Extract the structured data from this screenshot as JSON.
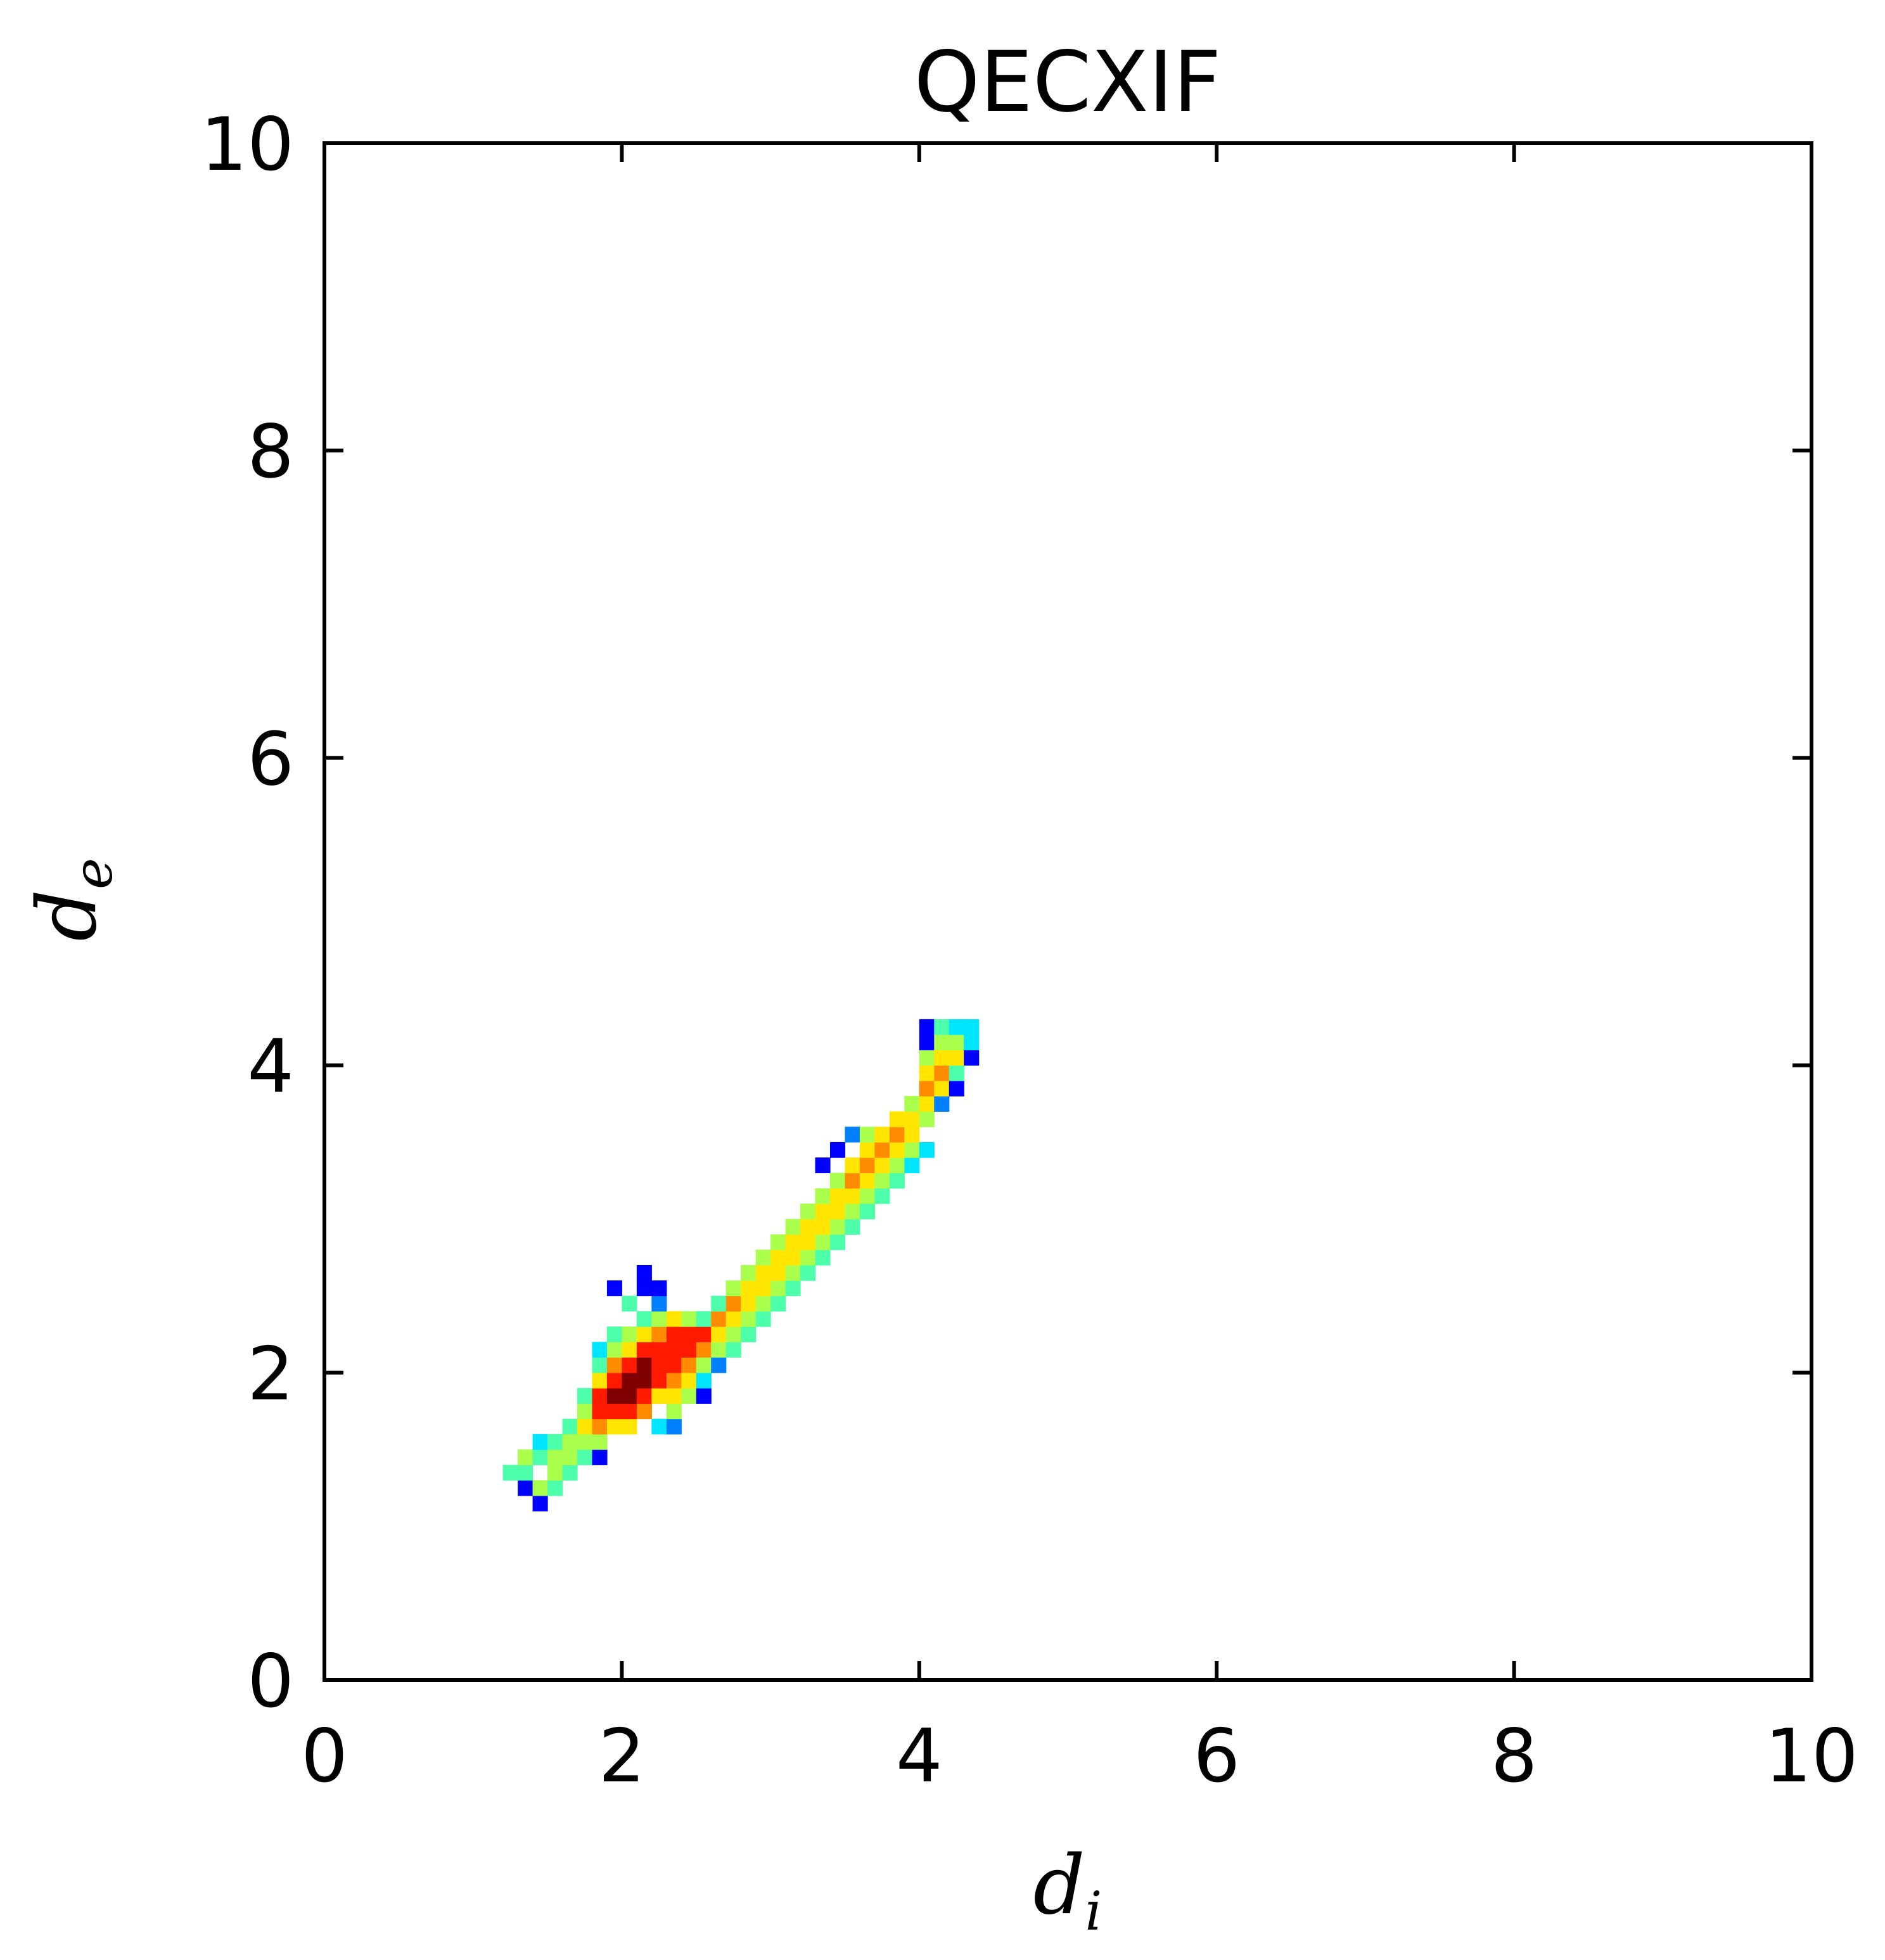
{
  "chart_data": {
    "type": "heatmap",
    "title": "QECXIF",
    "xlabel": {
      "base": "d",
      "sub": "i"
    },
    "ylabel": {
      "base": "d",
      "sub": "e"
    },
    "xlim": [
      0,
      10
    ],
    "ylim": [
      0,
      10
    ],
    "xticks": [
      "0",
      "2",
      "4",
      "6",
      "8",
      "10"
    ],
    "yticks": [
      "0",
      "2",
      "4",
      "6",
      "8",
      "10"
    ],
    "bin_size": 0.1,
    "colormap": "jet",
    "colors": [
      "#00007f",
      "#0000ff",
      "#0080ff",
      "#00e5ff",
      "#4dffaa",
      "#aaff4d",
      "#ffe500",
      "#ff8c00",
      "#ff1a00",
      "#7f0000"
    ],
    "grid": false,
    "legend": "none",
    "cells": [
      [
        1.2,
        1.3,
        4
      ],
      [
        1.3,
        1.2,
        1
      ],
      [
        1.3,
        1.3,
        4
      ],
      [
        1.3,
        1.4,
        5
      ],
      [
        1.4,
        1.1,
        1
      ],
      [
        1.4,
        1.2,
        5
      ],
      [
        1.4,
        1.4,
        4
      ],
      [
        1.4,
        1.5,
        3
      ],
      [
        1.5,
        1.2,
        4
      ],
      [
        1.5,
        1.3,
        5
      ],
      [
        1.5,
        1.4,
        5
      ],
      [
        1.5,
        1.5,
        4
      ],
      [
        1.6,
        1.3,
        4
      ],
      [
        1.6,
        1.4,
        5
      ],
      [
        1.6,
        1.5,
        5
      ],
      [
        1.6,
        1.6,
        4
      ],
      [
        1.7,
        1.4,
        4
      ],
      [
        1.7,
        1.5,
        5
      ],
      [
        1.7,
        1.6,
        6
      ],
      [
        1.7,
        1.7,
        5
      ],
      [
        1.7,
        1.8,
        4
      ],
      [
        1.8,
        1.4,
        1
      ],
      [
        1.8,
        1.5,
        5
      ],
      [
        1.8,
        1.6,
        7
      ],
      [
        1.8,
        1.7,
        8
      ],
      [
        1.8,
        1.8,
        8
      ],
      [
        1.8,
        1.9,
        6
      ],
      [
        1.8,
        2.0,
        4
      ],
      [
        1.8,
        2.1,
        3
      ],
      [
        1.9,
        1.6,
        6
      ],
      [
        1.9,
        1.7,
        8
      ],
      [
        1.9,
        1.8,
        9
      ],
      [
        1.9,
        1.9,
        8
      ],
      [
        1.9,
        2.0,
        7
      ],
      [
        1.9,
        2.1,
        5
      ],
      [
        1.9,
        2.2,
        4
      ],
      [
        1.9,
        2.5,
        1
      ],
      [
        2.0,
        1.6,
        6
      ],
      [
        2.0,
        1.7,
        8
      ],
      [
        2.0,
        1.8,
        9
      ],
      [
        2.0,
        1.9,
        9
      ],
      [
        2.0,
        2.0,
        8
      ],
      [
        2.0,
        2.1,
        6
      ],
      [
        2.0,
        2.2,
        5
      ],
      [
        2.0,
        2.4,
        4
      ],
      [
        2.1,
        1.7,
        7
      ],
      [
        2.1,
        1.8,
        8
      ],
      [
        2.1,
        1.9,
        9
      ],
      [
        2.1,
        2.0,
        9
      ],
      [
        2.1,
        2.1,
        8
      ],
      [
        2.1,
        2.2,
        6
      ],
      [
        2.1,
        2.3,
        4
      ],
      [
        2.1,
        2.5,
        1
      ],
      [
        2.1,
        2.6,
        1
      ],
      [
        2.2,
        1.6,
        3
      ],
      [
        2.2,
        1.8,
        6
      ],
      [
        2.2,
        1.9,
        8
      ],
      [
        2.2,
        2.0,
        8
      ],
      [
        2.2,
        2.1,
        8
      ],
      [
        2.2,
        2.2,
        7
      ],
      [
        2.2,
        2.3,
        5
      ],
      [
        2.2,
        2.4,
        2
      ],
      [
        2.2,
        2.5,
        1
      ],
      [
        2.3,
        1.6,
        2
      ],
      [
        2.3,
        1.7,
        5
      ],
      [
        2.3,
        1.8,
        6
      ],
      [
        2.3,
        1.9,
        7
      ],
      [
        2.3,
        2.0,
        8
      ],
      [
        2.3,
        2.1,
        8
      ],
      [
        2.3,
        2.2,
        8
      ],
      [
        2.3,
        2.3,
        6
      ],
      [
        2.4,
        1.8,
        5
      ],
      [
        2.4,
        1.9,
        6
      ],
      [
        2.4,
        2.0,
        7
      ],
      [
        2.4,
        2.1,
        8
      ],
      [
        2.4,
        2.2,
        8
      ],
      [
        2.4,
        2.3,
        5
      ],
      [
        2.5,
        1.8,
        1
      ],
      [
        2.5,
        1.9,
        3
      ],
      [
        2.5,
        2.0,
        5
      ],
      [
        2.5,
        2.1,
        7
      ],
      [
        2.5,
        2.2,
        8
      ],
      [
        2.5,
        2.3,
        4
      ],
      [
        2.6,
        2.0,
        2
      ],
      [
        2.6,
        2.1,
        5
      ],
      [
        2.6,
        2.2,
        6
      ],
      [
        2.6,
        2.3,
        7
      ],
      [
        2.6,
        2.4,
        4
      ],
      [
        2.7,
        2.1,
        4
      ],
      [
        2.7,
        2.2,
        5
      ],
      [
        2.7,
        2.3,
        6
      ],
      [
        2.7,
        2.4,
        7
      ],
      [
        2.7,
        2.5,
        5
      ],
      [
        2.8,
        2.2,
        4
      ],
      [
        2.8,
        2.3,
        5
      ],
      [
        2.8,
        2.4,
        6
      ],
      [
        2.8,
        2.5,
        6
      ],
      [
        2.8,
        2.6,
        5
      ],
      [
        2.9,
        2.3,
        4
      ],
      [
        2.9,
        2.4,
        5
      ],
      [
        2.9,
        2.5,
        6
      ],
      [
        2.9,
        2.6,
        6
      ],
      [
        2.9,
        2.7,
        5
      ],
      [
        3.0,
        2.4,
        4
      ],
      [
        3.0,
        2.5,
        5
      ],
      [
        3.0,
        2.6,
        6
      ],
      [
        3.0,
        2.7,
        6
      ],
      [
        3.0,
        2.8,
        5
      ],
      [
        3.1,
        2.5,
        4
      ],
      [
        3.1,
        2.6,
        5
      ],
      [
        3.1,
        2.7,
        6
      ],
      [
        3.1,
        2.8,
        6
      ],
      [
        3.1,
        2.9,
        5
      ],
      [
        3.2,
        2.6,
        4
      ],
      [
        3.2,
        2.7,
        5
      ],
      [
        3.2,
        2.8,
        6
      ],
      [
        3.2,
        2.9,
        6
      ],
      [
        3.2,
        3.0,
        5
      ],
      [
        3.3,
        2.7,
        4
      ],
      [
        3.3,
        2.8,
        5
      ],
      [
        3.3,
        2.9,
        6
      ],
      [
        3.3,
        3.0,
        6
      ],
      [
        3.3,
        3.1,
        5
      ],
      [
        3.3,
        3.3,
        1
      ],
      [
        3.4,
        2.8,
        4
      ],
      [
        3.4,
        2.9,
        5
      ],
      [
        3.4,
        3.0,
        6
      ],
      [
        3.4,
        3.1,
        6
      ],
      [
        3.4,
        3.2,
        5
      ],
      [
        3.4,
        3.4,
        1
      ],
      [
        3.5,
        2.9,
        4
      ],
      [
        3.5,
        3.0,
        5
      ],
      [
        3.5,
        3.1,
        6
      ],
      [
        3.5,
        3.2,
        7
      ],
      [
        3.5,
        3.3,
        6
      ],
      [
        3.5,
        3.5,
        2
      ],
      [
        3.6,
        3.0,
        4
      ],
      [
        3.6,
        3.1,
        5
      ],
      [
        3.6,
        3.2,
        6
      ],
      [
        3.6,
        3.3,
        7
      ],
      [
        3.6,
        3.4,
        6
      ],
      [
        3.6,
        3.5,
        5
      ],
      [
        3.7,
        3.1,
        4
      ],
      [
        3.7,
        3.2,
        5
      ],
      [
        3.7,
        3.3,
        6
      ],
      [
        3.7,
        3.4,
        7
      ],
      [
        3.7,
        3.5,
        6
      ],
      [
        3.8,
        3.2,
        4
      ],
      [
        3.8,
        3.3,
        5
      ],
      [
        3.8,
        3.4,
        6
      ],
      [
        3.8,
        3.5,
        7
      ],
      [
        3.8,
        3.6,
        6
      ],
      [
        3.9,
        3.3,
        3
      ],
      [
        3.9,
        3.4,
        5
      ],
      [
        3.9,
        3.5,
        6
      ],
      [
        3.9,
        3.6,
        6
      ],
      [
        3.9,
        3.7,
        5
      ],
      [
        4.0,
        3.4,
        3
      ],
      [
        4.0,
        3.6,
        5
      ],
      [
        4.0,
        3.7,
        6
      ],
      [
        4.0,
        3.8,
        7
      ],
      [
        4.0,
        3.9,
        6
      ],
      [
        4.0,
        4.0,
        5
      ],
      [
        4.0,
        4.1,
        1
      ],
      [
        4.0,
        4.2,
        1
      ],
      [
        4.1,
        3.7,
        2
      ],
      [
        4.1,
        3.8,
        6
      ],
      [
        4.1,
        3.9,
        7
      ],
      [
        4.1,
        4.0,
        6
      ],
      [
        4.1,
        4.1,
        5
      ],
      [
        4.1,
        4.2,
        4
      ],
      [
        4.2,
        3.8,
        1
      ],
      [
        4.2,
        3.9,
        4
      ],
      [
        4.2,
        4.0,
        6
      ],
      [
        4.2,
        4.1,
        5
      ],
      [
        4.2,
        4.2,
        3
      ],
      [
        4.3,
        4.0,
        1
      ],
      [
        4.3,
        4.1,
        3
      ],
      [
        4.3,
        4.2,
        3
      ]
    ]
  }
}
